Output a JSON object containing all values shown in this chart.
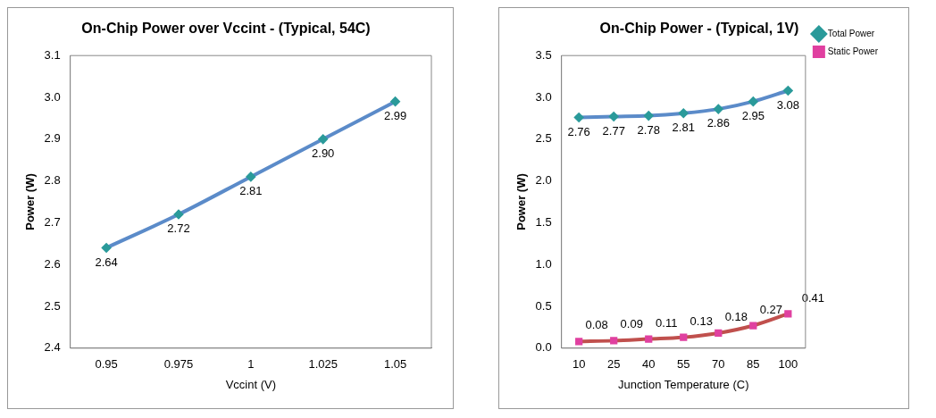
{
  "chart_data": [
    {
      "type": "line",
      "title": "On-Chip Power over Vccint - (Typical, 54C)",
      "xlabel": "Vccint (V)",
      "ylabel": "Power (W)",
      "categories": [
        "0.95",
        "0.975",
        "1",
        "1.025",
        "1.05"
      ],
      "ylim": [
        2.4,
        3.1
      ],
      "yticks": [
        2.4,
        2.5,
        2.6,
        2.7,
        2.8,
        2.9,
        {
          "value": 3,
          "label": "3.0"
        },
        3.1
      ],
      "grid": false,
      "legend": false,
      "marker": "diamond",
      "line_style": "solid",
      "series": [
        {
          "color": "#5b8bc9",
          "values": [
            2.64,
            2.72,
            2.81,
            2.9,
            2.99
          ],
          "value_labels": [
            "2.64",
            "2.72",
            "2.81",
            "2.90",
            "2.99"
          ]
        }
      ]
    },
    {
      "type": "line",
      "title": "On-Chip Power - (Typical, 1V)",
      "xlabel": "Junction Temperature (C)",
      "ylabel": "Power (W)",
      "categories": [
        "10",
        "25",
        "40",
        "55",
        "70",
        "85",
        "100"
      ],
      "ylim": [
        0,
        3.5
      ],
      "yticks": [
        {
          "value": 0,
          "label": "0.0"
        },
        0.5,
        {
          "value": 1,
          "label": "1.0"
        },
        1.5,
        {
          "value": 2,
          "label": "2.0"
        },
        2.5,
        {
          "value": 3,
          "label": "3.0"
        },
        3.5
      ],
      "grid": false,
      "legend": "top right",
      "line_style": "solid",
      "series": [
        {
          "name": "Total Power",
          "color": "#5b8bc9",
          "marker": "diamond",
          "values": [
            2.76,
            2.77,
            2.78,
            2.81,
            2.86,
            2.95,
            3.08
          ],
          "value_labels": [
            "2.76",
            "2.77",
            "2.78",
            "2.81",
            "2.86",
            "2.95",
            "3.08"
          ]
        },
        {
          "name": "Static Power",
          "color": "#c0504d",
          "marker": "square",
          "values": [
            0.08,
            0.09,
            0.11,
            0.13,
            0.18,
            0.27,
            0.41
          ],
          "value_labels": [
            "0.08",
            "0.09",
            "0.11",
            "0.13",
            "0.18",
            "0.27",
            "0.41"
          ]
        }
      ]
    }
  ]
}
